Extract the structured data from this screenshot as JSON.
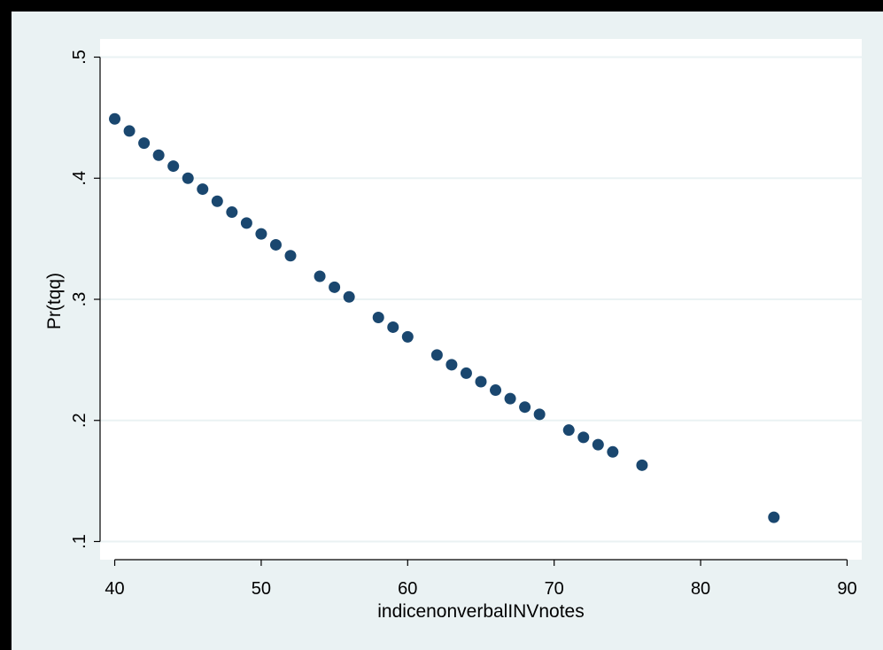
{
  "chart_data": {
    "type": "scatter",
    "title": "",
    "xlabel": "indicenonverbalINVnotes",
    "ylabel": "Pr(tqq)",
    "xlim": [
      39,
      91
    ],
    "ylim": [
      0.085,
      0.515
    ],
    "x_ticks": [
      40,
      50,
      60,
      70,
      80,
      90
    ],
    "x_tick_labels": [
      "40",
      "50",
      "60",
      "70",
      "80",
      "90"
    ],
    "y_ticks": [
      0.1,
      0.2,
      0.3,
      0.4,
      0.5
    ],
    "y_tick_labels": [
      ".1",
      ".2",
      ".3",
      ".4",
      ".5"
    ],
    "grid": "horizontal",
    "legend": "none",
    "colors": {
      "border": "#000000",
      "outer_background": "#eaf2f3",
      "plot_background": "#ffffff",
      "gridline": "#eaf2f3",
      "marker": "#1a476f"
    },
    "series": [
      {
        "points": [
          {
            "x": 40,
            "y": 0.449
          },
          {
            "x": 41,
            "y": 0.439
          },
          {
            "x": 42,
            "y": 0.429
          },
          {
            "x": 43,
            "y": 0.419
          },
          {
            "x": 44,
            "y": 0.41
          },
          {
            "x": 45,
            "y": 0.4
          },
          {
            "x": 46,
            "y": 0.391
          },
          {
            "x": 47,
            "y": 0.381
          },
          {
            "x": 48,
            "y": 0.372
          },
          {
            "x": 49,
            "y": 0.363
          },
          {
            "x": 50,
            "y": 0.354
          },
          {
            "x": 51,
            "y": 0.345
          },
          {
            "x": 52,
            "y": 0.336
          },
          {
            "x": 54,
            "y": 0.319
          },
          {
            "x": 55,
            "y": 0.31
          },
          {
            "x": 56,
            "y": 0.302
          },
          {
            "x": 58,
            "y": 0.285
          },
          {
            "x": 59,
            "y": 0.277
          },
          {
            "x": 60,
            "y": 0.269
          },
          {
            "x": 62,
            "y": 0.254
          },
          {
            "x": 63,
            "y": 0.246
          },
          {
            "x": 64,
            "y": 0.239
          },
          {
            "x": 65,
            "y": 0.232
          },
          {
            "x": 66,
            "y": 0.225
          },
          {
            "x": 67,
            "y": 0.218
          },
          {
            "x": 68,
            "y": 0.211
          },
          {
            "x": 69,
            "y": 0.205
          },
          {
            "x": 71,
            "y": 0.192
          },
          {
            "x": 72,
            "y": 0.186
          },
          {
            "x": 73,
            "y": 0.18
          },
          {
            "x": 74,
            "y": 0.174
          },
          {
            "x": 76,
            "y": 0.163
          },
          {
            "x": 85,
            "y": 0.12
          }
        ]
      }
    ]
  }
}
